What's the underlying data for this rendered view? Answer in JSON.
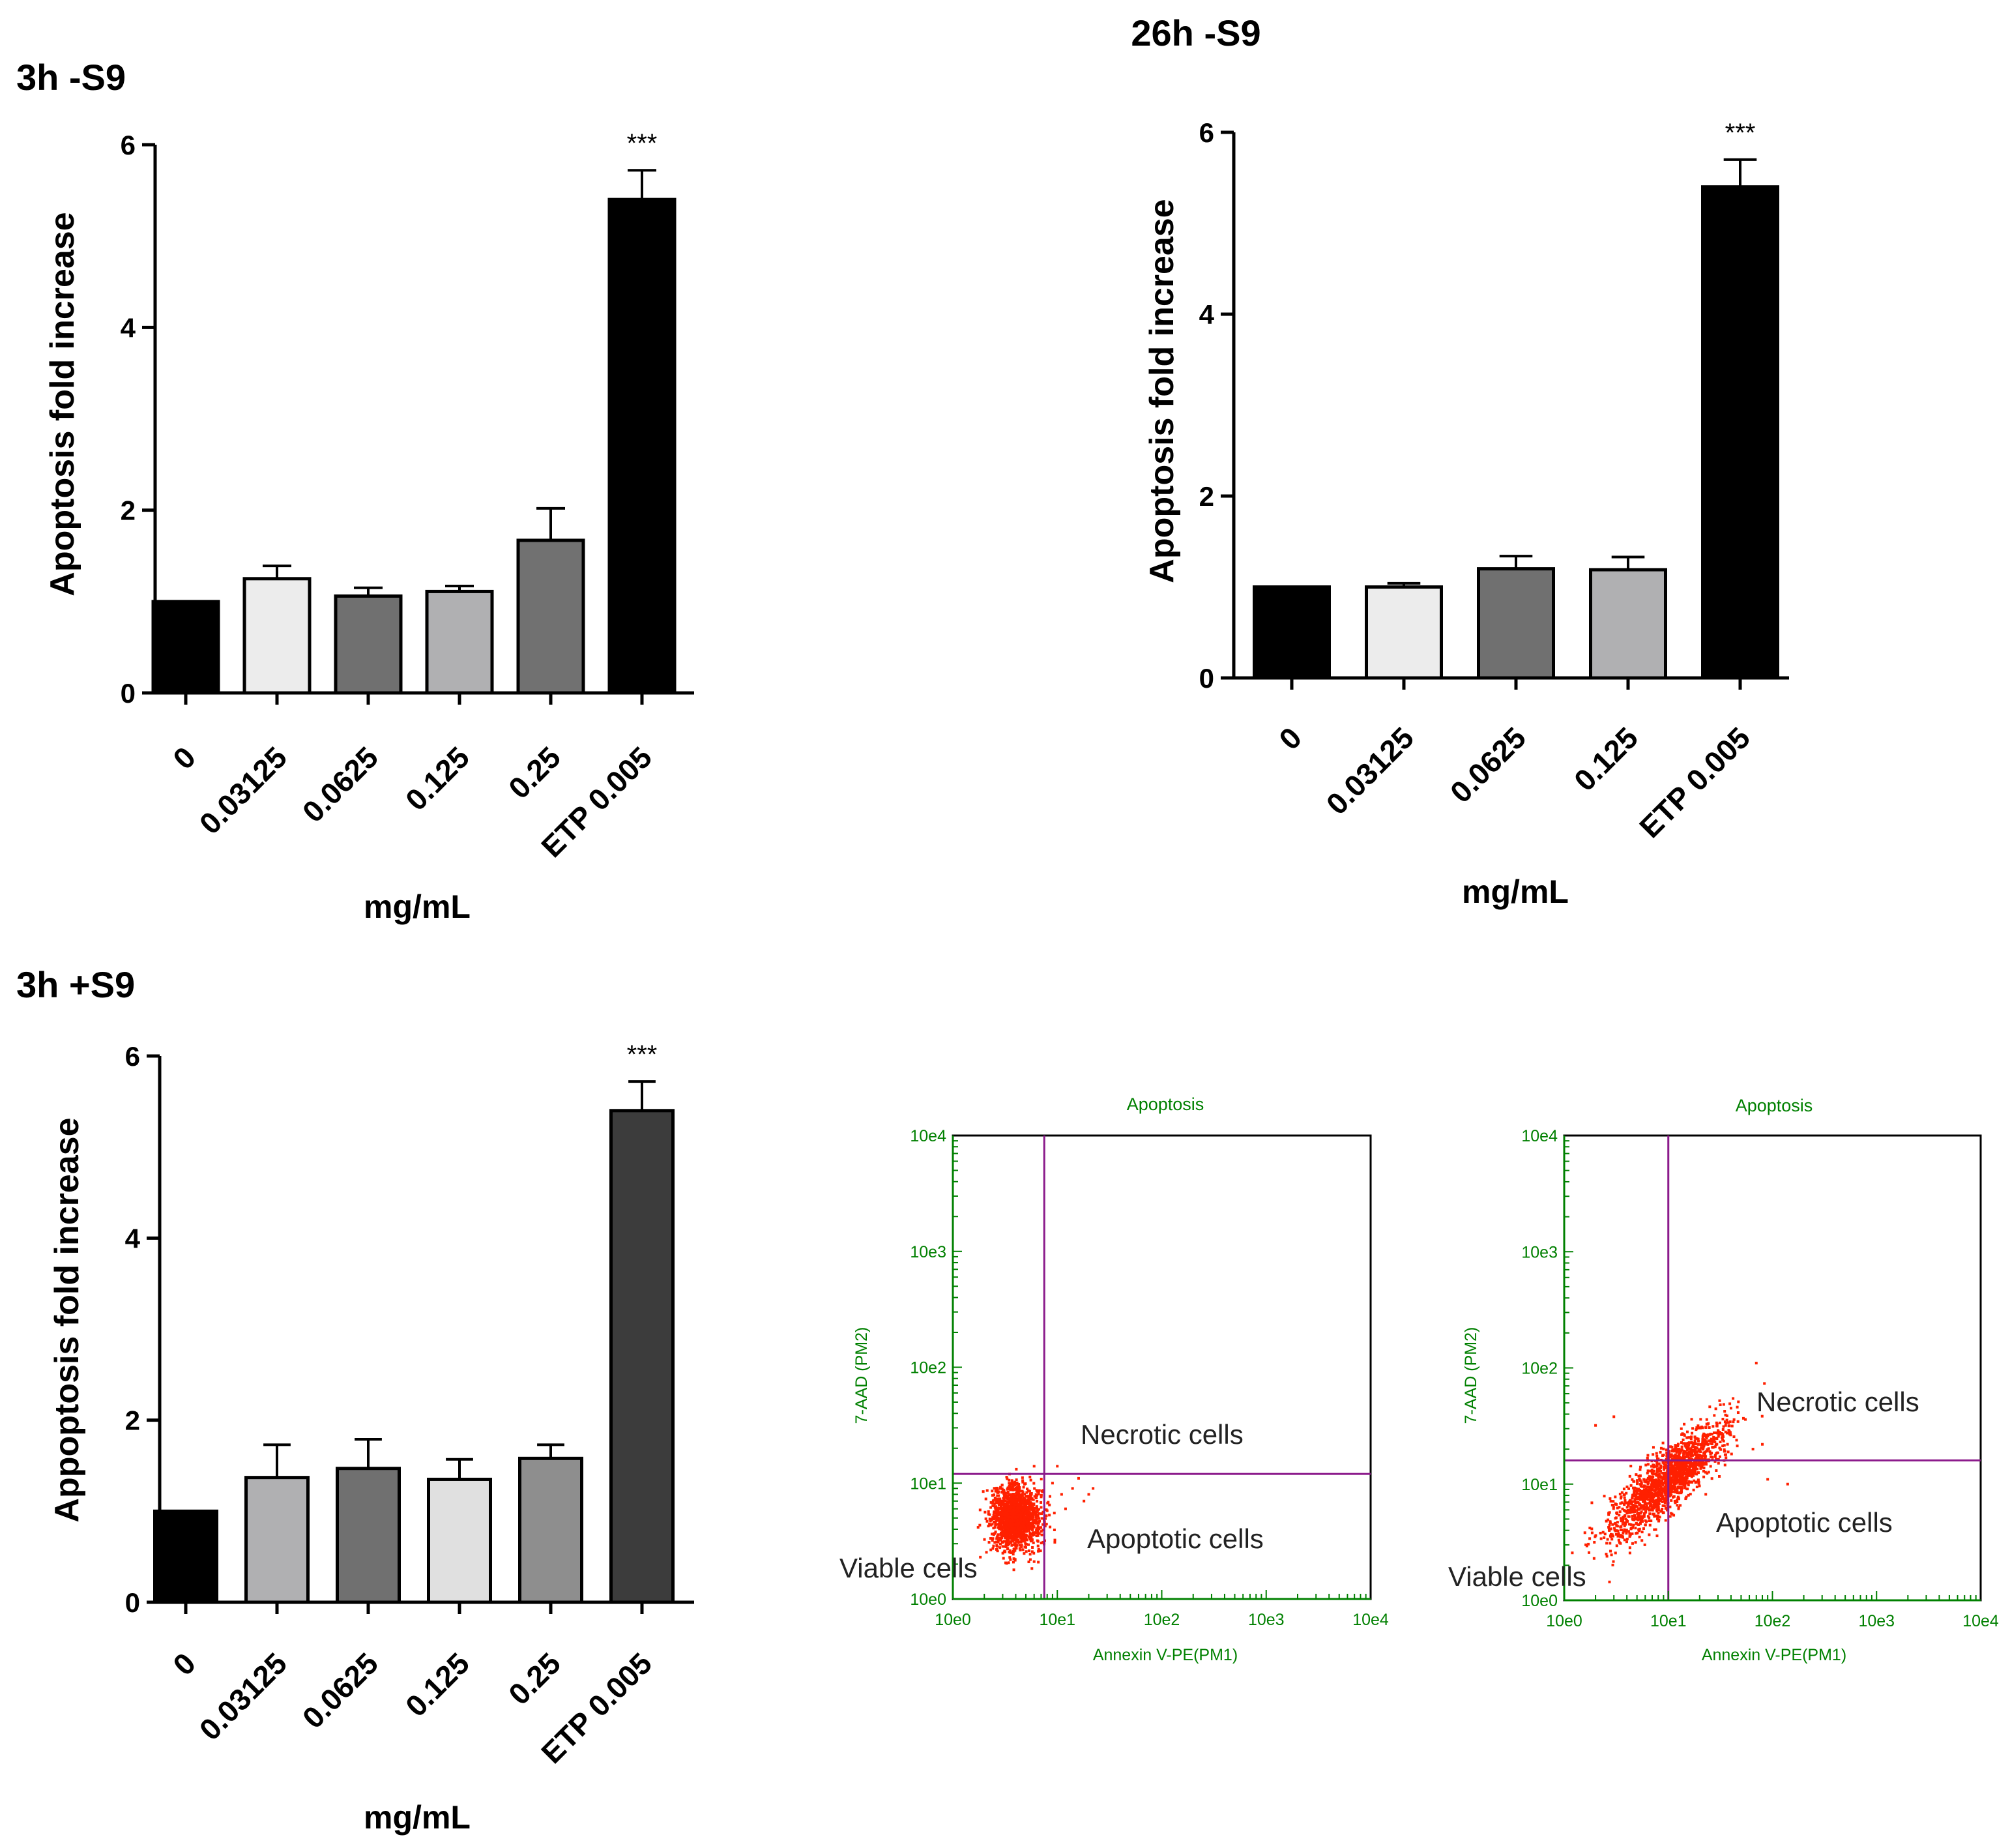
{
  "chart_data": [
    {
      "id": "p1",
      "type": "bar",
      "title": "3h -S9",
      "xlabel": "mg/mL",
      "ylabel": "Apoptosis fold increase",
      "ylim": [
        0,
        6
      ],
      "yticks": [
        "0",
        "2",
        "4",
        "6"
      ],
      "categories": [
        "0",
        "0.03125",
        "0.0625",
        "0.125",
        "0.25",
        "ETP 0.005"
      ],
      "values": [
        1.0,
        1.25,
        1.06,
        1.11,
        1.67,
        5.4
      ],
      "errors": [
        0.0,
        0.14,
        0.09,
        0.06,
        0.35,
        0.32
      ],
      "bar_colors": [
        "#000000",
        "#ececec",
        "#707070",
        "#b0b0b2",
        "#717171",
        "#000000"
      ],
      "significance": [
        "",
        "",
        "",
        "",
        "",
        "***"
      ]
    },
    {
      "id": "p2",
      "type": "bar",
      "title": "26h -S9",
      "xlabel": "mg/mL",
      "ylabel": "Apoptosis fold increase",
      "ylim": [
        0,
        6
      ],
      "yticks": [
        "0",
        "2",
        "4",
        "6"
      ],
      "categories": [
        "0",
        "0.03125",
        "0.0625",
        "0.125",
        "ETP 0.005"
      ],
      "values": [
        1.0,
        1.0,
        1.2,
        1.19,
        5.4
      ],
      "errors": [
        0.0,
        0.04,
        0.14,
        0.14,
        0.3
      ],
      "bar_colors": [
        "#000000",
        "#ececec",
        "#707070",
        "#b0b0b2",
        "#000000"
      ],
      "significance": [
        "",
        "",
        "",
        "",
        "***"
      ]
    },
    {
      "id": "p3",
      "type": "bar",
      "title": "3h +S9",
      "xlabel": "mg/mL",
      "ylabel": "Appoptosis fold increase",
      "ylim": [
        0,
        6
      ],
      "yticks": [
        "0",
        "2",
        "4",
        "6"
      ],
      "categories": [
        "0",
        "0.03125",
        "0.0625",
        "0.125",
        "0.25",
        "ETP 0.005"
      ],
      "values": [
        1.0,
        1.37,
        1.47,
        1.35,
        1.58,
        5.4
      ],
      "errors": [
        0.0,
        0.36,
        0.32,
        0.22,
        0.15,
        0.32
      ],
      "bar_colors": [
        "#000000",
        "#b0b0b2",
        "#707070",
        "#e0e0e0",
        "#8e8e8e",
        "#3c3c3c"
      ],
      "significance": [
        "",
        "",
        "",
        "",
        "",
        "***"
      ]
    },
    {
      "id": "f1",
      "type": "scatter",
      "title": "Apoptosis",
      "xlabel": "Annexin V-PE(PM1)",
      "ylabel": "7-AAD (PM2)",
      "xticks": [
        "10e0",
        "10e1",
        "10e2",
        "10e3",
        "10e4"
      ],
      "yticks": [
        "10e0",
        "10e1",
        "10e2",
        "10e3",
        "10e4"
      ],
      "xscale": "log",
      "xlim": [
        1,
        10000
      ],
      "ylim": [
        1,
        10000
      ],
      "gate_x": 7.5,
      "gate_y": 12,
      "regions": [
        "Necrotic cells",
        "Apoptotic cells",
        "Viable cells"
      ],
      "point_color": "#ff2000",
      "cluster": {
        "center_x": 4,
        "center_y": 5,
        "spread_log": 0.12,
        "count": 1500
      },
      "outliers": [
        [
          9,
          10
        ],
        [
          11,
          8
        ],
        [
          14,
          9
        ],
        [
          18,
          7
        ],
        [
          20,
          8
        ],
        [
          10,
          14
        ],
        [
          6,
          14
        ],
        [
          12,
          6
        ],
        [
          16,
          11
        ],
        [
          22,
          9
        ]
      ]
    },
    {
      "id": "f2",
      "type": "scatter",
      "title": "Apoptosis",
      "xlabel": "Annexin V-PE(PM1)",
      "ylabel": "7-AAD (PM2)",
      "xticks": [
        "10e0",
        "10e1",
        "10e2",
        "10e3",
        "10e4"
      ],
      "yticks": [
        "10e0",
        "10e1",
        "10e2",
        "10e3",
        "10e4"
      ],
      "xscale": "log",
      "xlim": [
        1,
        10000
      ],
      "ylim": [
        1,
        10000
      ],
      "gate_x": 10,
      "gate_y": 16,
      "regions": [
        "Necrotic cells",
        "Apoptotic cells",
        "Viable cells"
      ],
      "point_color": "#ff2000",
      "cluster": {
        "center_x": 10,
        "center_y": 11,
        "spread_log": 0.25,
        "count": 1700
      },
      "outliers": [
        [
          70,
          110
        ],
        [
          90,
          11
        ],
        [
          140,
          10
        ],
        [
          40,
          45
        ],
        [
          55,
          36
        ],
        [
          65,
          20
        ],
        [
          80,
          22
        ],
        [
          3,
          38
        ],
        [
          2,
          32
        ]
      ]
    }
  ]
}
